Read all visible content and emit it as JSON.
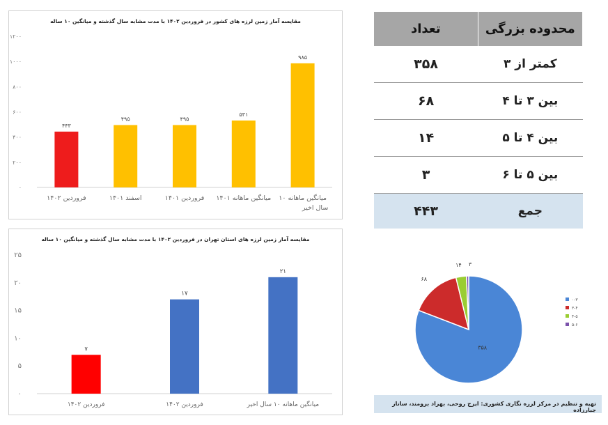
{
  "chart_data": [
    {
      "type": "bar",
      "title": "مقایسه آمار زمین لرزه های کشور در فروردین ۱۴۰۲ با مدت مشابه سال گذشته و میانگین ۱۰ ساله",
      "categories": [
        "فروردین ۱۴۰۲",
        "اسفند ۱۴۰۱",
        "فروردین ۱۴۰۱",
        "میانگین ماهانه ۱۴۰۱",
        "میانگین ماهانه ۱۰ سال اخیر"
      ],
      "values": [
        443,
        495,
        495,
        531,
        985
      ],
      "value_labels": [
        "۴۴۳",
        "۴۹۵",
        "۴۹۵",
        "۵۳۱",
        "۹۸۵"
      ],
      "colors": [
        "#ee1c1c",
        "#ffc000",
        "#ffc000",
        "#ffc000",
        "#ffc000"
      ],
      "ylim": [
        0,
        1200
      ],
      "yticks": [
        0,
        200,
        400,
        600,
        800,
        1000,
        1200
      ],
      "ytick_labels": [
        "۰",
        "۲۰۰",
        "۴۰۰",
        "۶۰۰",
        "۸۰۰",
        "۱۰۰۰",
        "۱۲۰۰"
      ],
      "grid": false
    },
    {
      "type": "bar",
      "title": "مقایسه آمار زمین لرزه های استان تهران در فروردین ۱۴۰۲ با مدت مشابه سال گذشته و میانگین ۱۰ ساله",
      "categories": [
        "فروردین ۱۴۰۲",
        "فروردین ۱۴۰۲",
        "میانگین ماهانه ۱۰ سال اخیر"
      ],
      "values": [
        7,
        17,
        21
      ],
      "value_labels": [
        "۷",
        "۱۷",
        "۲۱"
      ],
      "colors": [
        "#ff0000",
        "#4472c4",
        "#4472c4"
      ],
      "ylim": [
        0,
        25
      ],
      "yticks": [
        0,
        5,
        10,
        15,
        20,
        25
      ],
      "ytick_labels": [
        "۰",
        "۵",
        "۱۰",
        "۱۵",
        "۲۰",
        "۲۵"
      ],
      "grid": false
    },
    {
      "type": "pie",
      "labels": [
        "۰-۳",
        "۳-۴",
        "۴-۵",
        "۵-۶"
      ],
      "values": [
        358,
        68,
        14,
        3
      ],
      "value_labels": [
        "۳۵۸",
        "۶۸",
        "۱۴",
        "۳"
      ],
      "colors": [
        "#4a86d6",
        "#cc2b2b",
        "#9acd32",
        "#7b52ab"
      ],
      "legend": "right"
    }
  ],
  "table": {
    "headers": {
      "range": "محدوده بزرگی",
      "count": "تعداد"
    },
    "rows": [
      {
        "range": "کمتر از ۳",
        "count": "۳۵۸"
      },
      {
        "range": "بین ۳ تا ۴",
        "count": "۶۸"
      },
      {
        "range": "بین ۴ تا ۵",
        "count": "۱۴"
      },
      {
        "range": "بین ۵ تا ۶",
        "count": "۳"
      }
    ],
    "total": {
      "label": "جمع",
      "count": "۴۴۳"
    }
  },
  "credit": "تهیه و تنظیم در مرکز لرزه نگاری کشوری: ایرج روحی، بهزاد برومند، ساناز جبارزاده"
}
